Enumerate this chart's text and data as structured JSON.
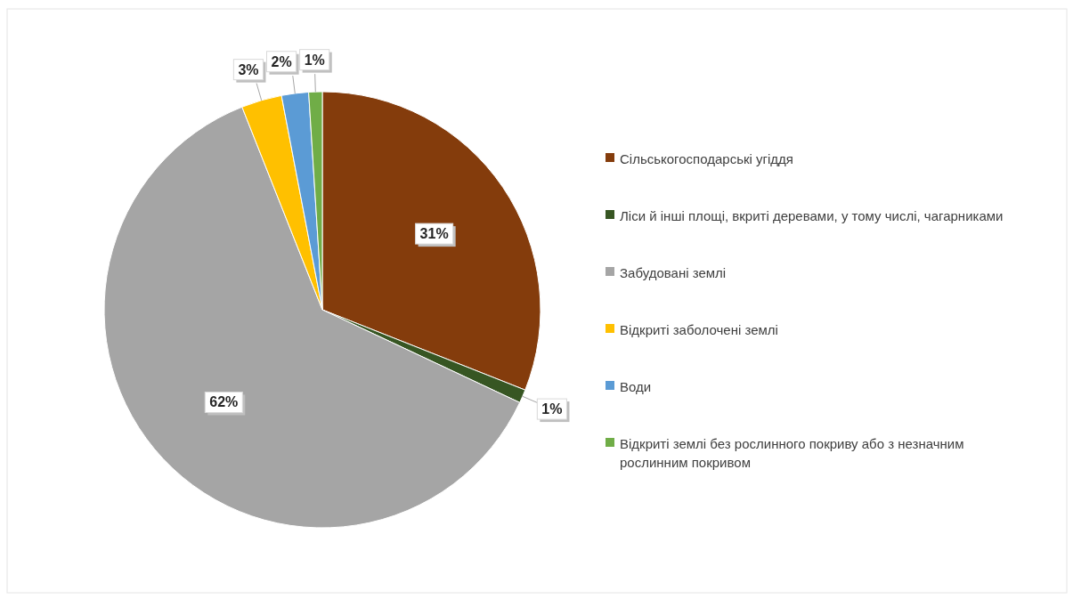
{
  "chart_data": {
    "type": "pie",
    "categories": [
      "Сільськогосподарські угіддя",
      "Ліси й інші площі, вкриті деревами, у тому числі, чагарниками",
      "Забудовані землі",
      "Відкриті заболочені землі",
      "Води",
      "Відкриті землі без рослинного покриву або з незначним рослинним покривом"
    ],
    "values": [
      31,
      1,
      62,
      3,
      2,
      1
    ],
    "colors": [
      "#843c0c",
      "#375623",
      "#a5a5a5",
      "#ffc000",
      "#5b9bd5",
      "#70ad47"
    ],
    "value_labels": [
      "31%",
      "1%",
      "62%",
      "3%",
      "2%",
      "1%"
    ],
    "legend": "right"
  }
}
